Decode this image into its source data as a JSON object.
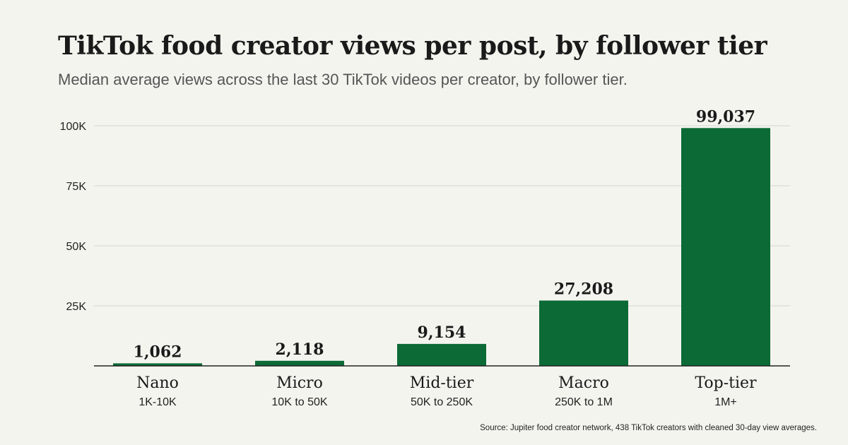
{
  "chart_data": {
    "type": "bar",
    "title": "TikTok food creator views per post, by follower tier",
    "subtitle": "Median average views across the last 30 TikTok videos per creator, by follower tier.",
    "categories": [
      "Nano",
      "Micro",
      "Mid-tier",
      "Macro",
      "Top-tier"
    ],
    "category_sublabels": [
      "1K-10K",
      "10K to 50K",
      "50K to 250K",
      "250K to 1M",
      "1M+"
    ],
    "values": [
      1062,
      2118,
      9154,
      27208,
      99037
    ],
    "value_labels": [
      "1,062",
      "2,118",
      "9,154",
      "27,208",
      "99,037"
    ],
    "ylim": [
      0,
      100000
    ],
    "yticks": [
      25000,
      50000,
      75000,
      100000
    ],
    "ytick_labels": [
      "25K",
      "50K",
      "75K",
      "100K"
    ],
    "grid": true,
    "bar_color": "#0b6a35",
    "source": "Source: Jupiter food creator network, 438 TikTok creators with cleaned 30-day view averages."
  }
}
